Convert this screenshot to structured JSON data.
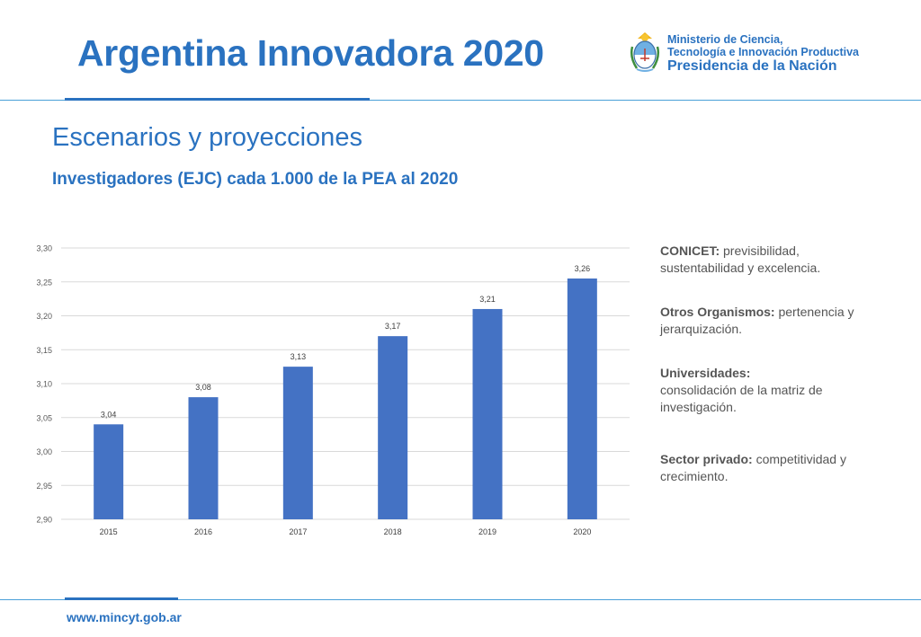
{
  "header": {
    "title": "Argentina Innovadora 2020",
    "logo": {
      "line1": "Ministerio de Ciencia,",
      "line2": "Tecnología e Innovación Productiva",
      "line3": "Presidencia de la Nación",
      "icon": "argentina-coat-of-arms-icon"
    }
  },
  "section": {
    "subtitle": "Escenarios y proyecciones",
    "chart_title": "Investigadores (EJC) cada 1.000 de la PEA al 2020"
  },
  "chart_data": {
    "type": "bar",
    "categories": [
      "2015",
      "2016",
      "2017",
      "2018",
      "2019",
      "2020"
    ],
    "values": [
      3.04,
      3.08,
      3.125,
      3.17,
      3.21,
      3.255
    ],
    "data_labels": [
      "3,04",
      "3,08",
      "3,13",
      "3,17",
      "3,21",
      "3,26"
    ],
    "y_ticks": [
      2.9,
      2.95,
      3.0,
      3.05,
      3.1,
      3.15,
      3.2,
      3.25,
      3.3
    ],
    "y_tick_labels": [
      "2,90",
      "2,95",
      "3,00",
      "3,05",
      "3,10",
      "3,15",
      "3,20",
      "3,25",
      "3,30"
    ],
    "ylim": [
      2.9,
      3.3
    ],
    "grid": true,
    "legend": "none",
    "bar_color": "#4472c4",
    "title": "",
    "xlabel": "",
    "ylabel": ""
  },
  "notes": [
    {
      "bold": "CONICET:",
      "text": " previsibilidad, sustentabilidad y excelencia."
    },
    {
      "bold": "Otros Organismos:",
      "text": " pertenencia y jerarquización."
    },
    {
      "bold": "Universidades:",
      "text": " consolidación de la matriz de investigación.",
      "break": true
    },
    {
      "bold": "Sector privado:",
      "text": " competitividad y crecimiento."
    }
  ],
  "footer": {
    "url": "www.mincyt.gob.ar"
  },
  "colors": {
    "brand_blue": "#2a72c0",
    "line_blue": "#4aa0d8",
    "bar_blue": "#4472c4"
  }
}
